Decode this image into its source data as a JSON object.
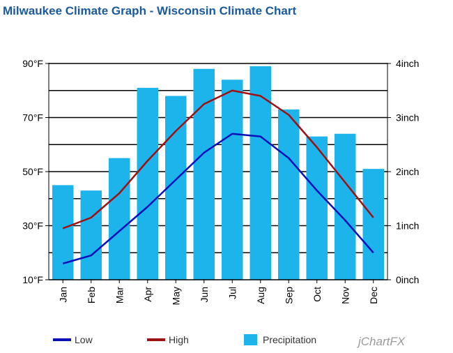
{
  "chart_data": {
    "type": "bar+line",
    "title": "Milwaukee Climate Graph - Wisconsin Climate Chart",
    "categories": [
      "Jan",
      "Feb",
      "Mar",
      "Apr",
      "May",
      "Jun",
      "Jul",
      "Aug",
      "Sep",
      "Oct",
      "Nov",
      "Dec"
    ],
    "series": [
      {
        "name": "Low",
        "type": "line",
        "axis": "left",
        "color": "#0a10b8",
        "values": [
          16,
          19,
          28,
          37,
          47,
          57,
          64,
          63,
          55,
          43,
          32,
          20
        ]
      },
      {
        "name": "High",
        "type": "line",
        "axis": "left",
        "color": "#a01010",
        "values": [
          29,
          33,
          42,
          54,
          65,
          75,
          80,
          78,
          71,
          59,
          46,
          33
        ]
      },
      {
        "name": "Precipitation",
        "type": "bar",
        "axis": "right",
        "color": "#1db4ec",
        "values": [
          1.75,
          1.65,
          2.25,
          3.55,
          3.4,
          3.9,
          3.7,
          3.95,
          3.15,
          2.65,
          2.7,
          2.05
        ]
      }
    ],
    "left_axis": {
      "min": 10,
      "max": 90,
      "tick_labels": [
        "90°F",
        "70°F",
        "50°F",
        "30°F",
        "10°F"
      ],
      "tick_values": [
        90,
        70,
        50,
        30,
        10
      ]
    },
    "right_axis": {
      "min": 0,
      "max": 4,
      "tick_labels": [
        "4inch",
        "3inch",
        "2inch",
        "1inch",
        "0inch"
      ],
      "tick_values": [
        4,
        3,
        2,
        1,
        0
      ]
    },
    "gridlines": true,
    "legend": {
      "position": "bottom",
      "items": [
        "Low",
        "High",
        "Precipitation"
      ]
    },
    "watermark": "jChartFX"
  }
}
